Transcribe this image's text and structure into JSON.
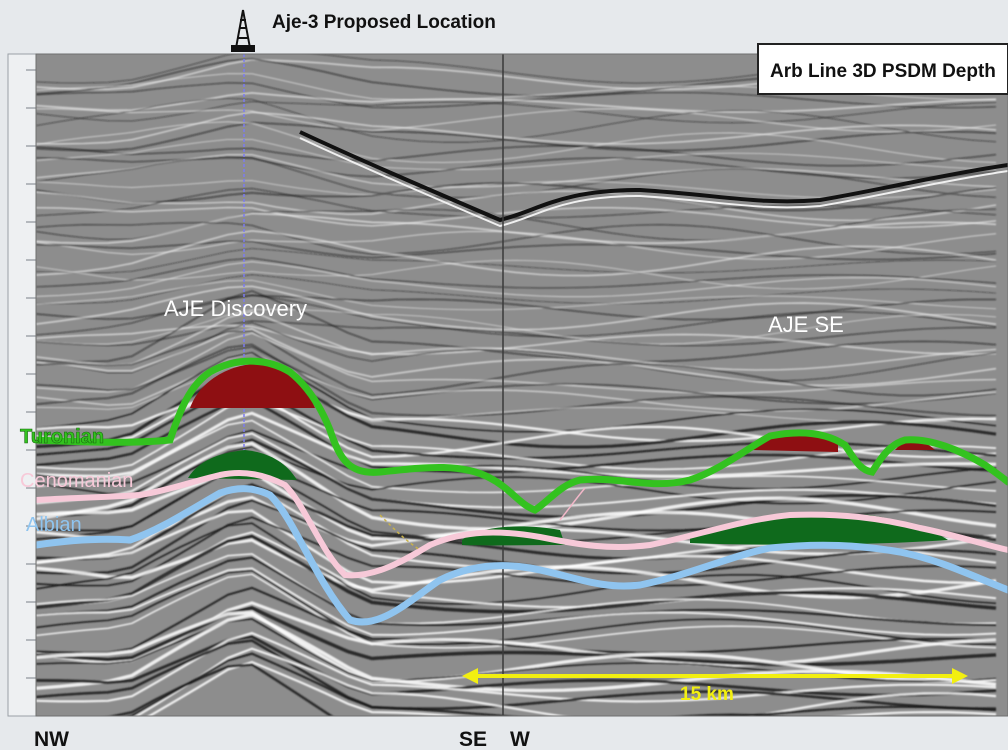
{
  "header": {
    "well_title": "Aje-3 Proposed Location",
    "section_title": "Arb Line 3D PSDM Depth"
  },
  "annotations": {
    "discovery": "AJE Discovery",
    "se_prospect": "AJE SE",
    "scale_bar": "15 km"
  },
  "horizons": [
    {
      "name": "Turonian",
      "color": "#33c21f"
    },
    {
      "name": "Cenomanian",
      "color": "#f7c9d8"
    },
    {
      "name": "Albian",
      "color": "#8fc4ef"
    }
  ],
  "directions": {
    "left": "NW",
    "middle_left": "SE",
    "middle_right": "W"
  },
  "colors": {
    "gas": "#8e0f12",
    "oil": "#0f6a1c",
    "scale_bar": "#f2ef10",
    "seismic_background": "#8d8d8d"
  },
  "icons": [
    "drilling-rig-icon"
  ]
}
